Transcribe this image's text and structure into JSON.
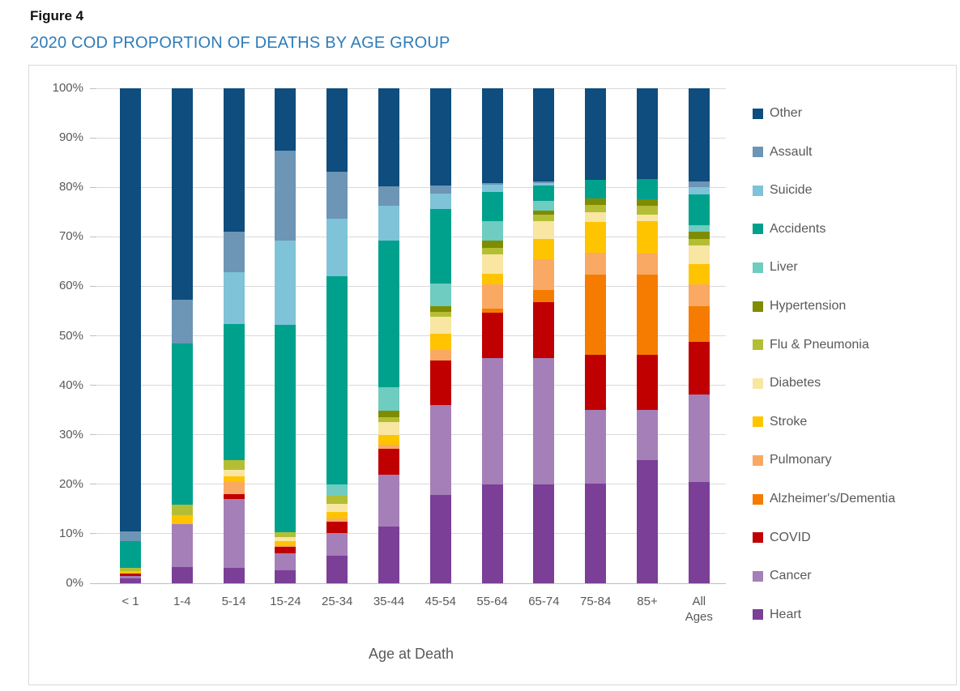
{
  "figure_label": "Figure 4",
  "title": "2020 COD PROPORTION OF DEATHS BY AGE GROUP",
  "colors": {
    "title": "#2E7CB8",
    "figure_label": "#111111",
    "axis_text": "#595959",
    "grid": "#d9d9d9",
    "axis_line": "#bfbfbf",
    "frame_border": "#d9d9d9"
  },
  "chart_data": {
    "type": "bar",
    "subtype": "stacked-100-percent",
    "title": "2020 COD PROPORTION OF DEATHS BY AGE GROUP",
    "xlabel": "Age at Death",
    "ylabel": "",
    "ylim": [
      0,
      100
    ],
    "ytick_labels": [
      "0%",
      "10%",
      "20%",
      "30%",
      "40%",
      "50%",
      "60%",
      "70%",
      "80%",
      "90%",
      "100%"
    ],
    "grid": true,
    "legend_position": "right",
    "legend_order_top_to_bottom": [
      "Other",
      "Assault",
      "Suicide",
      "Accidents",
      "Liver",
      "Hypertension",
      "Flu & Pneumonia",
      "Diabetes",
      "Stroke",
      "Pulmonary",
      "Alzheimer's/Dementia",
      "COVID",
      "Cancer",
      "Heart"
    ],
    "categories": [
      "< 1",
      "1-4",
      "5-14",
      "15-24",
      "25-34",
      "35-44",
      "45-54",
      "55-64",
      "65-74",
      "75-84",
      "85+",
      "All Ages"
    ],
    "units": "percent of deaths",
    "series": [
      {
        "name": "Heart",
        "color": "#7B3F97",
        "values": [
          1.0,
          3.2,
          3.1,
          2.6,
          5.6,
          11.5,
          17.8,
          20.0,
          19.9,
          20.2,
          24.9,
          20.5
        ]
      },
      {
        "name": "Cancer",
        "color": "#A57FB8",
        "values": [
          0.4,
          8.7,
          14.0,
          3.5,
          4.6,
          10.4,
          18.2,
          25.5,
          25.6,
          14.9,
          10.2,
          17.6
        ]
      },
      {
        "name": "COVID",
        "color": "#C00000",
        "values": [
          0.5,
          0,
          0.9,
          1.2,
          2.2,
          5.3,
          9.0,
          9.1,
          11.3,
          11.0,
          11.0,
          10.7
        ]
      },
      {
        "name": "Alzheimer's/Dementia",
        "color": "#F57C01",
        "values": [
          0,
          0,
          0,
          0,
          0,
          0,
          0,
          0.9,
          2.4,
          16.2,
          16.3,
          7.2
        ]
      },
      {
        "name": "Pulmonary",
        "color": "#F9A963",
        "values": [
          0,
          0,
          2.4,
          0.4,
          0.7,
          0.8,
          2.2,
          4.9,
          6.3,
          4.4,
          4.2,
          4.4
        ]
      },
      {
        "name": "Stroke",
        "color": "#FFC400",
        "values": [
          0.6,
          1.8,
          1.2,
          0.8,
          1.3,
          2.0,
          3.2,
          2.2,
          4.1,
          6.3,
          6.5,
          4.1
        ]
      },
      {
        "name": "Diabetes",
        "color": "#F8E6A2",
        "values": [
          0,
          0,
          1.3,
          0.9,
          1.7,
          2.6,
          3.5,
          3.9,
          3.5,
          1.9,
          1.4,
          3.7
        ]
      },
      {
        "name": "Flu & Pneumonia",
        "color": "#B4BE35",
        "values": [
          0.6,
          2.1,
          2.0,
          0.9,
          1.6,
          0.9,
          0.9,
          1.2,
          1.4,
          1.5,
          1.7,
          1.3
        ]
      },
      {
        "name": "Hypertension",
        "color": "#7F8C00",
        "values": [
          0,
          0,
          0,
          0,
          0,
          1.3,
          1.2,
          1.6,
          0.8,
          1.4,
          1.4,
          1.5
        ]
      },
      {
        "name": "Liver",
        "color": "#6FCCC0",
        "values": [
          0,
          0,
          0,
          0,
          2.3,
          4.8,
          4.6,
          3.8,
          1.9,
          0,
          0,
          1.4
        ]
      },
      {
        "name": "Accidents",
        "color": "#00A18C",
        "values": [
          5.4,
          32.6,
          27.5,
          41.9,
          42.0,
          29.7,
          15.0,
          6.0,
          3.2,
          3.7,
          4.0,
          6.2
        ]
      },
      {
        "name": "Suicide",
        "color": "#7EC3D8",
        "values": [
          0,
          0,
          10.5,
          17.1,
          11.6,
          6.9,
          3.1,
          1.4,
          0.4,
          0,
          0,
          1.4
        ]
      },
      {
        "name": "Assault",
        "color": "#6D95B5",
        "values": [
          2.0,
          8.9,
          8.2,
          18.1,
          9.6,
          4.0,
          1.7,
          0.4,
          0.3,
          0,
          0,
          1.1
        ]
      },
      {
        "name": "Other",
        "color": "#0E4D7D",
        "values": [
          89.5,
          42.7,
          28.9,
          12.6,
          16.8,
          19.8,
          19.6,
          19.1,
          18.9,
          18.5,
          18.4,
          18.9
        ]
      }
    ]
  }
}
